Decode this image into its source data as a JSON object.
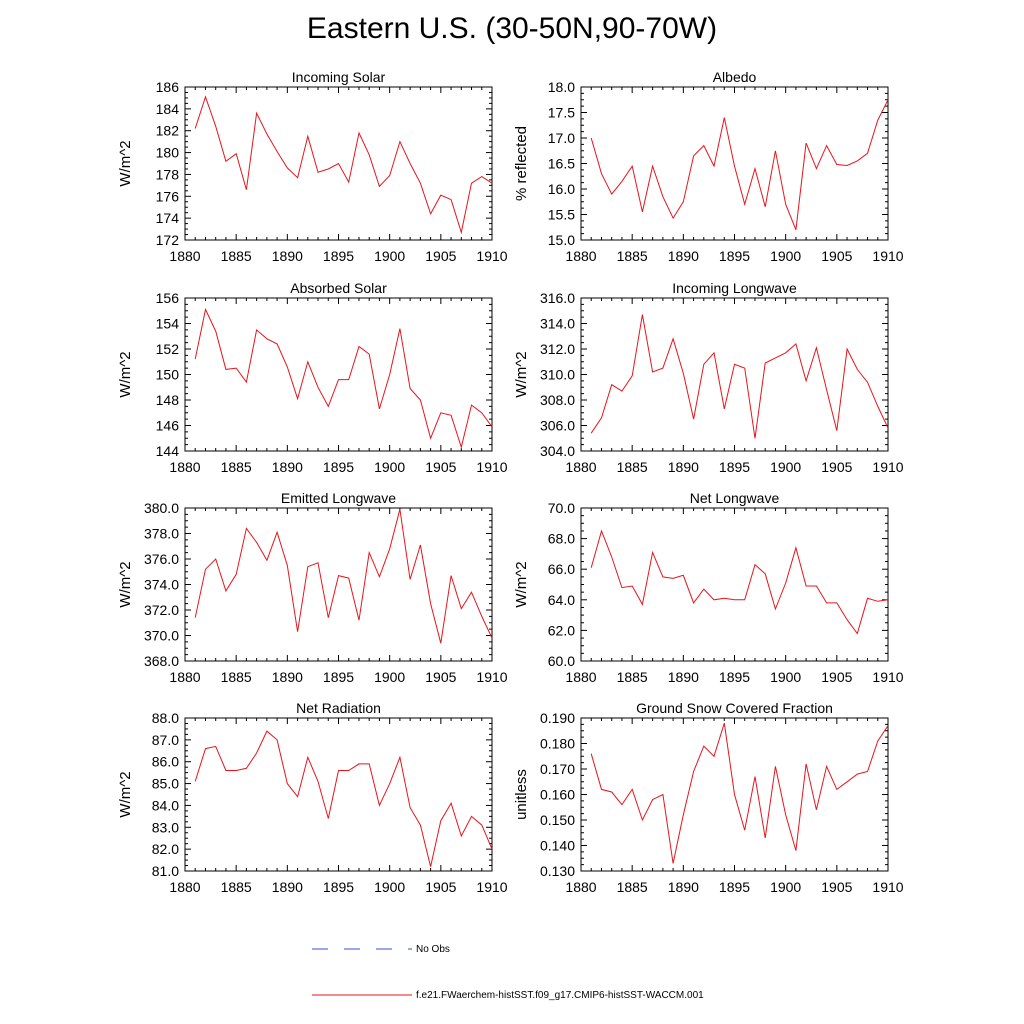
{
  "title": "Eastern U.S. (30-50N,90-70W)",
  "legend": {
    "obs_label": "No Obs",
    "model_label": "f.e21.FWaerchem-histSST.f09_g17.CMIP6-histSST-WACCM.001",
    "obs_color": "#3b4bd6",
    "model_color": "#e8141b"
  },
  "chart_data": [
    {
      "type": "line",
      "title": "Incoming Solar",
      "ylabel": "W/m^2",
      "xlim": [
        1880,
        1910
      ],
      "ylim": [
        172,
        186
      ],
      "xticks": [
        1880,
        1885,
        1890,
        1895,
        1900,
        1905,
        1910
      ],
      "yticks": [
        "172",
        "174",
        "176",
        "178",
        "180",
        "182",
        "184",
        "186"
      ],
      "x": [
        1881,
        1882,
        1883,
        1884,
        1885,
        1886,
        1887,
        1888,
        1889,
        1890,
        1891,
        1892,
        1893,
        1894,
        1895,
        1896,
        1897,
        1898,
        1899,
        1900,
        1901,
        1902,
        1903,
        1904,
        1905,
        1906,
        1907,
        1908,
        1909,
        1910
      ],
      "series": [
        {
          "values": [
            182.2,
            185.1,
            182.4,
            179.2,
            179.9,
            176.6,
            183.6,
            181.7,
            180.1,
            178.6,
            177.7,
            181.5,
            178.2,
            178.5,
            179.0,
            177.3,
            181.8,
            179.8,
            176.9,
            177.9,
            181.0,
            179.0,
            177.2,
            174.4,
            176.1,
            175.7,
            172.7,
            177.2,
            177.8,
            177.2
          ]
        }
      ]
    },
    {
      "type": "line",
      "title": "Albedo",
      "ylabel": "% reflected",
      "xlim": [
        1880,
        1910
      ],
      "ylim": [
        15.0,
        18.0
      ],
      "xticks": [
        1880,
        1885,
        1890,
        1895,
        1900,
        1905,
        1910
      ],
      "yticks": [
        "15.0",
        "15.5",
        "16.0",
        "16.5",
        "17.0",
        "17.5",
        "18.0"
      ],
      "x": [
        1881,
        1882,
        1883,
        1884,
        1885,
        1886,
        1887,
        1888,
        1889,
        1890,
        1891,
        1892,
        1893,
        1894,
        1895,
        1896,
        1897,
        1898,
        1899,
        1900,
        1901,
        1902,
        1903,
        1904,
        1905,
        1906,
        1907,
        1908,
        1909,
        1910
      ],
      "series": [
        {
          "values": [
            17.0,
            16.3,
            15.9,
            16.15,
            16.45,
            15.55,
            16.45,
            15.85,
            15.43,
            15.75,
            16.65,
            16.85,
            16.45,
            17.4,
            16.45,
            15.7,
            16.4,
            15.65,
            16.75,
            15.7,
            15.2,
            16.9,
            16.4,
            16.85,
            16.48,
            16.46,
            16.55,
            16.7,
            17.35,
            17.75
          ]
        }
      ]
    },
    {
      "type": "line",
      "title": "Absorbed Solar",
      "ylabel": "W/m^2",
      "xlim": [
        1880,
        1910
      ],
      "ylim": [
        144,
        156
      ],
      "xticks": [
        1880,
        1885,
        1890,
        1895,
        1900,
        1905,
        1910
      ],
      "yticks": [
        "144",
        "146",
        "148",
        "150",
        "152",
        "154",
        "156"
      ],
      "x": [
        1881,
        1882,
        1883,
        1884,
        1885,
        1886,
        1887,
        1888,
        1889,
        1890,
        1891,
        1892,
        1893,
        1894,
        1895,
        1896,
        1897,
        1898,
        1899,
        1900,
        1901,
        1902,
        1903,
        1904,
        1905,
        1906,
        1907,
        1908,
        1909,
        1910
      ],
      "series": [
        {
          "values": [
            151.2,
            155.1,
            153.4,
            150.4,
            150.5,
            149.4,
            153.5,
            152.8,
            152.4,
            150.6,
            148.1,
            151.0,
            149.0,
            147.5,
            149.6,
            149.6,
            152.2,
            151.6,
            147.3,
            150.0,
            153.6,
            148.9,
            148.0,
            145.0,
            147.0,
            146.8,
            144.3,
            147.6,
            147.0,
            145.9
          ]
        }
      ]
    },
    {
      "type": "line",
      "title": "Incoming Longwave",
      "ylabel": "W/m^2",
      "xlim": [
        1880,
        1910
      ],
      "ylim": [
        304.0,
        316.0
      ],
      "xticks": [
        1880,
        1885,
        1890,
        1895,
        1900,
        1905,
        1910
      ],
      "yticks": [
        "304.0",
        "306.0",
        "308.0",
        "310.0",
        "312.0",
        "314.0",
        "316.0"
      ],
      "x": [
        1881,
        1882,
        1883,
        1884,
        1885,
        1886,
        1887,
        1888,
        1889,
        1890,
        1891,
        1892,
        1893,
        1894,
        1895,
        1896,
        1897,
        1898,
        1899,
        1900,
        1901,
        1902,
        1903,
        1904,
        1905,
        1906,
        1907,
        1908,
        1909,
        1910
      ],
      "series": [
        {
          "values": [
            305.4,
            306.6,
            309.2,
            308.7,
            309.9,
            314.7,
            310.2,
            310.5,
            312.8,
            310.1,
            306.5,
            310.8,
            311.7,
            307.3,
            310.8,
            310.5,
            305.0,
            310.9,
            311.3,
            311.7,
            312.4,
            309.5,
            312.1,
            308.8,
            305.6,
            312.0,
            310.4,
            309.4,
            307.5,
            305.8
          ]
        }
      ]
    },
    {
      "type": "line",
      "title": "Emitted Longwave",
      "ylabel": "W/m^2",
      "xlim": [
        1880,
        1910
      ],
      "ylim": [
        368.0,
        380.0
      ],
      "xticks": [
        1880,
        1885,
        1890,
        1895,
        1900,
        1905,
        1910
      ],
      "yticks": [
        "368.0",
        "370.0",
        "372.0",
        "374.0",
        "376.0",
        "378.0",
        "380.0"
      ],
      "x": [
        1881,
        1882,
        1883,
        1884,
        1885,
        1886,
        1887,
        1888,
        1889,
        1890,
        1891,
        1892,
        1893,
        1894,
        1895,
        1896,
        1897,
        1898,
        1899,
        1900,
        1901,
        1902,
        1903,
        1904,
        1905,
        1906,
        1907,
        1908,
        1909,
        1910
      ],
      "series": [
        {
          "values": [
            371.4,
            375.2,
            376.0,
            373.5,
            374.8,
            378.4,
            377.3,
            375.9,
            378.1,
            375.5,
            370.3,
            375.4,
            375.7,
            371.4,
            374.7,
            374.5,
            371.2,
            376.5,
            374.6,
            376.8,
            379.9,
            374.4,
            377.1,
            372.5,
            369.4,
            374.7,
            372.1,
            373.4,
            371.5,
            369.8
          ]
        }
      ]
    },
    {
      "type": "line",
      "title": "Net Longwave",
      "ylabel": "W/m^2",
      "xlim": [
        1880,
        1910
      ],
      "ylim": [
        60.0,
        70.0
      ],
      "xticks": [
        1880,
        1885,
        1890,
        1895,
        1900,
        1905,
        1910
      ],
      "yticks": [
        "60.0",
        "62.0",
        "64.0",
        "66.0",
        "68.0",
        "70.0"
      ],
      "x": [
        1881,
        1882,
        1883,
        1884,
        1885,
        1886,
        1887,
        1888,
        1889,
        1890,
        1891,
        1892,
        1893,
        1894,
        1895,
        1896,
        1897,
        1898,
        1899,
        1900,
        1901,
        1902,
        1903,
        1904,
        1905,
        1906,
        1907,
        1908,
        1909,
        1910
      ],
      "series": [
        {
          "values": [
            66.1,
            68.5,
            66.8,
            64.8,
            64.9,
            63.7,
            67.1,
            65.5,
            65.4,
            65.6,
            63.8,
            64.7,
            64.0,
            64.1,
            64.0,
            64.0,
            66.3,
            65.7,
            63.4,
            65.1,
            67.4,
            64.9,
            64.9,
            63.8,
            63.8,
            62.7,
            61.8,
            64.1,
            63.9,
            64.0
          ]
        }
      ]
    },
    {
      "type": "line",
      "title": "Net Radiation",
      "ylabel": "W/m^2",
      "xlim": [
        1880,
        1910
      ],
      "ylim": [
        81.0,
        88.0
      ],
      "xticks": [
        1880,
        1885,
        1890,
        1895,
        1900,
        1905,
        1910
      ],
      "yticks": [
        "81.0",
        "82.0",
        "83.0",
        "84.0",
        "85.0",
        "86.0",
        "87.0",
        "88.0"
      ],
      "x": [
        1881,
        1882,
        1883,
        1884,
        1885,
        1886,
        1887,
        1888,
        1889,
        1890,
        1891,
        1892,
        1893,
        1894,
        1895,
        1896,
        1897,
        1898,
        1899,
        1900,
        1901,
        1902,
        1903,
        1904,
        1905,
        1906,
        1907,
        1908,
        1909,
        1910
      ],
      "series": [
        {
          "values": [
            85.1,
            86.6,
            86.7,
            85.6,
            85.6,
            85.7,
            86.4,
            87.4,
            87.0,
            85.0,
            84.4,
            86.2,
            85.1,
            83.4,
            85.6,
            85.6,
            85.9,
            85.9,
            84.0,
            85.0,
            86.2,
            83.9,
            83.1,
            81.2,
            83.3,
            84.1,
            82.6,
            83.5,
            83.1,
            82.0
          ]
        }
      ]
    },
    {
      "type": "line",
      "title": "Ground Snow Covered Fraction",
      "ylabel": "unitless",
      "xlim": [
        1880,
        1910
      ],
      "ylim": [
        0.13,
        0.19
      ],
      "xticks": [
        1880,
        1885,
        1890,
        1895,
        1900,
        1905,
        1910
      ],
      "yticks": [
        "0.130",
        "0.140",
        "0.150",
        "0.160",
        "0.170",
        "0.180",
        "0.190"
      ],
      "x": [
        1881,
        1882,
        1883,
        1884,
        1885,
        1886,
        1887,
        1888,
        1889,
        1890,
        1891,
        1892,
        1893,
        1894,
        1895,
        1896,
        1897,
        1898,
        1899,
        1900,
        1901,
        1902,
        1903,
        1904,
        1905,
        1906,
        1907,
        1908,
        1909,
        1910
      ],
      "series": [
        {
          "values": [
            0.176,
            0.162,
            0.161,
            0.156,
            0.162,
            0.15,
            0.158,
            0.16,
            0.133,
            0.152,
            0.169,
            0.179,
            0.175,
            0.188,
            0.16,
            0.146,
            0.167,
            0.143,
            0.171,
            0.152,
            0.138,
            0.172,
            0.154,
            0.171,
            0.162,
            0.165,
            0.168,
            0.169,
            0.181,
            0.187
          ]
        }
      ]
    }
  ]
}
